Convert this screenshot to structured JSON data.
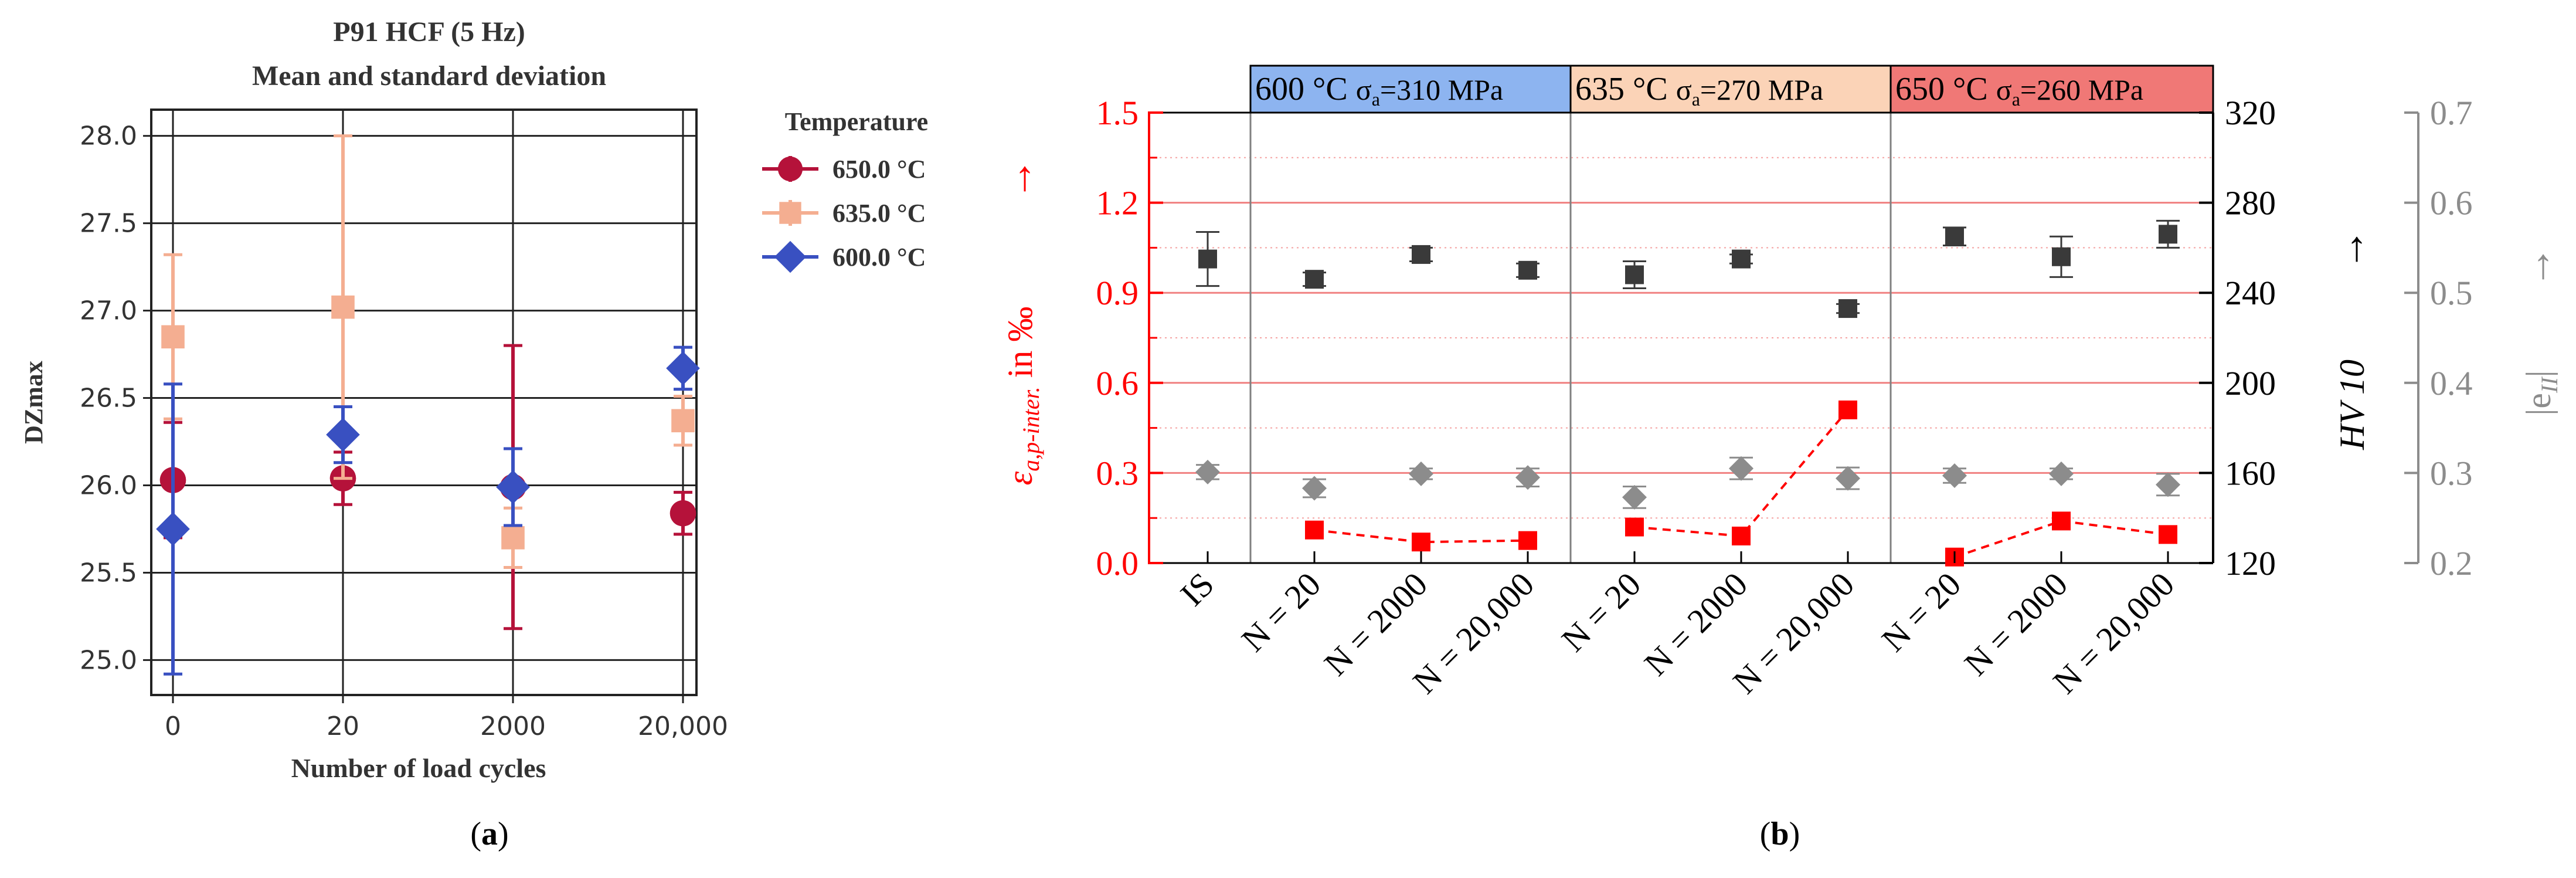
{
  "chart_data": [
    {
      "id": "a",
      "type": "scatter",
      "title_line1": "P91 HCF (5 Hz)",
      "title_line2": "Mean and standard deviation",
      "xlabel": "Number of load cycles",
      "ylabel": "DZmax",
      "categories": [
        "0",
        "20",
        "2000",
        "20,000"
      ],
      "ylim": [
        24.8,
        28.15
      ],
      "yticks": [
        "25.0",
        "25.5",
        "26.0",
        "26.5",
        "27.0",
        "27.5",
        "28.0"
      ],
      "ytick_values": [
        25.0,
        25.5,
        26.0,
        26.5,
        27.0,
        27.5,
        28.0
      ],
      "grid": true,
      "legend_title": "Temperature",
      "legend_position": "outside-right",
      "series": [
        {
          "name": "650.0 °C",
          "color": "#b5123a",
          "marker": "circle",
          "means": [
            26.03,
            26.04,
            25.99,
            25.84
          ],
          "stds": [
            0.33,
            0.15,
            0.81,
            0.12
          ]
        },
        {
          "name": "635.0 °C",
          "color": "#f4ae91",
          "marker": "square",
          "means": [
            26.85,
            27.02,
            25.7,
            26.37
          ],
          "stds": [
            0.47,
            0.98,
            0.17,
            0.14
          ]
        },
        {
          "name": "600.0 °C",
          "color": "#3950c1",
          "marker": "diamond",
          "means": [
            25.75,
            26.29,
            25.99,
            26.67
          ],
          "stds": [
            0.83,
            0.16,
            0.22,
            0.12
          ]
        }
      ],
      "panel_label": "(a)"
    },
    {
      "id": "b",
      "type": "scatter",
      "categories": [
        "IS",
        "N = 20",
        "N = 2000",
        "N = 20,000",
        "N = 20",
        "N = 2000",
        "N = 20,000",
        "N = 20",
        "N = 2000",
        "N = 20,000"
      ],
      "groups": [
        {
          "temp": "600 °C",
          "sigma": "σ",
          "sigma_sub": "a",
          "stress": "=310 MPa",
          "color": "#8db4f0",
          "from_index": 1,
          "to_index": 3
        },
        {
          "temp": "635 °C",
          "sigma": "σ",
          "sigma_sub": "a",
          "stress": "=270 MPa",
          "color": "#fbd3b7",
          "from_index": 4,
          "to_index": 6
        },
        {
          "temp": "650 °C",
          "sigma": "σ",
          "sigma_sub": "a",
          "stress": "=260 MPa",
          "color": "#f07876",
          "from_index": 7,
          "to_index": 9
        }
      ],
      "left_axis": {
        "label_symbol": "ε",
        "label_sub": "a,p-inter.",
        "label_unit": " in ‰",
        "arrow": "→",
        "color": "#ff0000",
        "ylim": [
          0.0,
          1.5
        ],
        "ticks": [
          "0.0",
          "0.3",
          "0.6",
          "0.9",
          "1.2",
          "1.5"
        ],
        "tick_values": [
          0.0,
          0.3,
          0.6,
          0.9,
          1.2,
          1.5
        ]
      },
      "hv_axis": {
        "label": "HV 10",
        "arrow": "→",
        "color": "#000000",
        "ylim": [
          120,
          320
        ],
        "ticks": [
          "120",
          "160",
          "200",
          "240",
          "280",
          "320"
        ],
        "tick_values": [
          120,
          160,
          200,
          240,
          280,
          320
        ]
      },
      "e_axis": {
        "label": "|e",
        "label_sub": "II",
        "label_end": "|",
        "arrow": "→",
        "color": "#8c8c8c",
        "ylim": [
          0.2,
          0.7
        ],
        "ticks": [
          "0.2",
          "0.3",
          "0.4",
          "0.5",
          "0.6",
          "0.7"
        ],
        "tick_values": [
          0.2,
          0.3,
          0.4,
          0.5,
          0.6,
          0.7
        ]
      },
      "series": [
        {
          "name": "ε a,p-inter.",
          "axis": "left",
          "color": "#ff0000",
          "marker": "square",
          "line": "dashed",
          "points": [
            [
              1,
              0.11
            ],
            [
              2,
              0.07
            ],
            [
              3,
              0.075
            ],
            [
              4,
              0.12
            ],
            [
              5,
              0.09
            ],
            [
              6,
              0.51
            ],
            [
              7,
              0.02
            ],
            [
              8,
              0.14
            ],
            [
              9,
              0.095
            ]
          ],
          "line_segments": [
            [
              1,
              3
            ],
            [
              4,
              6
            ],
            [
              7,
              9
            ]
          ]
        },
        {
          "name": "HV 10",
          "axis": "hv",
          "color": "#3a3a3a",
          "marker": "square",
          "points": [
            [
              0,
              255,
              12
            ],
            [
              1,
              246,
              3
            ],
            [
              2,
              257,
              3
            ],
            [
              3,
              250,
              3
            ],
            [
              4,
              248,
              6
            ],
            [
              5,
              255,
              2
            ],
            [
              6,
              233,
              2
            ],
            [
              7,
              265,
              4
            ],
            [
              8,
              256,
              9
            ],
            [
              9,
              266,
              6
            ]
          ]
        },
        {
          "name": "|e II|",
          "axis": "e",
          "color": "#8c8c8c",
          "marker": "diamond",
          "points": [
            [
              0,
              0.301,
              0.008
            ],
            [
              1,
              0.283,
              0.01
            ],
            [
              2,
              0.299,
              0.006
            ],
            [
              3,
              0.295,
              0.01
            ],
            [
              4,
              0.273,
              0.012
            ],
            [
              5,
              0.305,
              0.012
            ],
            [
              6,
              0.294,
              0.012
            ],
            [
              7,
              0.297,
              0.008
            ],
            [
              8,
              0.299,
              0.006
            ],
            [
              9,
              0.287,
              0.012
            ]
          ]
        }
      ],
      "panel_label": "(b)"
    }
  ]
}
